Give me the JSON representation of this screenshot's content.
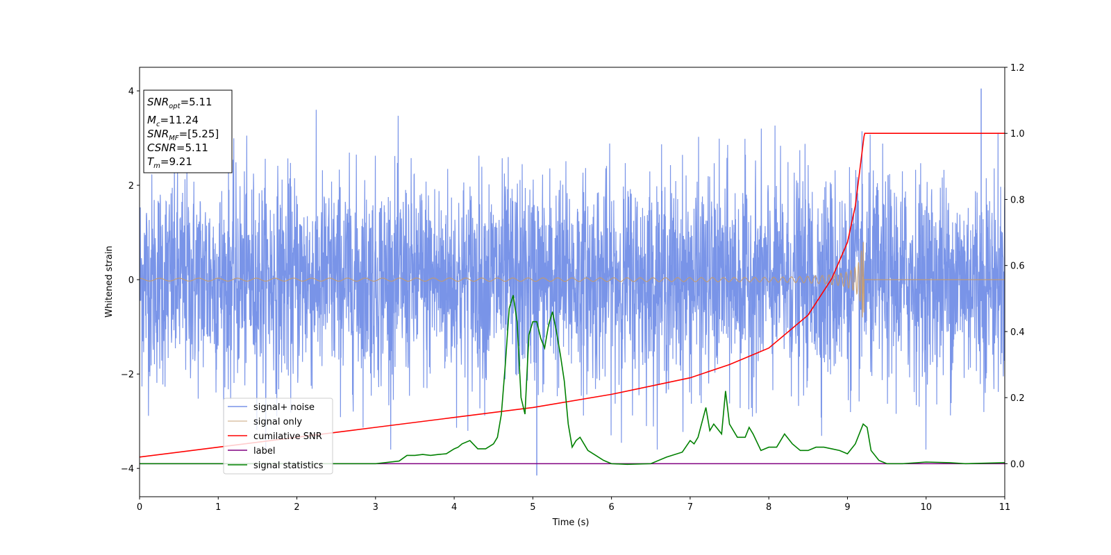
{
  "chart_data": {
    "type": "line",
    "xlabel": "Time (s)",
    "ylabel_left": "Whitened strain",
    "ylabel_right": "",
    "xlim": [
      0,
      11
    ],
    "ylim_left": [
      -4.6,
      4.5
    ],
    "ylim_right": [
      -0.1,
      1.2
    ],
    "x_ticks": [
      "0",
      "1",
      "2",
      "3",
      "4",
      "5",
      "6",
      "7",
      "8",
      "9",
      "10",
      "11"
    ],
    "y_ticks_left": [
      "−4",
      "−2",
      "0",
      "2",
      "4"
    ],
    "y_ticks_right": [
      "0.0",
      "0.2",
      "0.4",
      "0.6",
      "0.8",
      "1.0",
      "1.2"
    ],
    "grid": false,
    "legend_position": "lower-left",
    "info_box": {
      "snr_opt": {
        "label": "SNR",
        "sub": "opt",
        "value": "=5.11"
      },
      "mc": {
        "label": "M",
        "sub": "c",
        "value": "=11.24"
      },
      "snr_mf": {
        "label": "SNR",
        "sub": "MF",
        "value": "=[5.25]"
      },
      "csnr": {
        "label": "CSNR",
        "value": "=5.11"
      },
      "tm": {
        "label": "T",
        "sub": "m",
        "value": "=9.21"
      }
    },
    "series": [
      {
        "name": "signal+ noise",
        "axis": "left",
        "color": "#7994e8",
        "description_values": {
          "std": 1.1,
          "min": -4.15,
          "max": 4.05,
          "t_min": 5.05,
          "t_max": 10.7
        }
      },
      {
        "name": "signal only",
        "axis": "left",
        "color": "#c49a6c",
        "chirp": {
          "t_merger": 9.21,
          "amp_start": 0.03,
          "amp_peak": 0.8,
          "end": 11
        }
      },
      {
        "name": "cumilative SNR",
        "axis": "right",
        "color": "#ff0000",
        "x": [
          0,
          1,
          2,
          3,
          4,
          5,
          6,
          7,
          7.5,
          8,
          8.5,
          8.8,
          9.0,
          9.1,
          9.21,
          9.22,
          11
        ],
        "y": [
          0.02,
          0.05,
          0.08,
          0.11,
          0.14,
          0.17,
          0.21,
          0.26,
          0.3,
          0.35,
          0.45,
          0.56,
          0.67,
          0.78,
          0.99,
          1.0,
          1.0
        ]
      },
      {
        "name": "label",
        "axis": "right",
        "color": "#800080",
        "x": [
          0,
          11
        ],
        "y": [
          0.0,
          0.0
        ]
      },
      {
        "name": "signal statistics",
        "axis": "right",
        "color": "#008000",
        "x": [
          0,
          0.5,
          1,
          1.5,
          2,
          2.5,
          3,
          3.3,
          3.4,
          3.5,
          3.6,
          3.7,
          3.8,
          3.9,
          4.0,
          4.05,
          4.1,
          4.2,
          4.3,
          4.4,
          4.5,
          4.55,
          4.6,
          4.65,
          4.7,
          4.75,
          4.8,
          4.85,
          4.9,
          4.95,
          5.0,
          5.05,
          5.1,
          5.15,
          5.2,
          5.25,
          5.3,
          5.35,
          5.4,
          5.45,
          5.5,
          5.55,
          5.6,
          5.65,
          5.7,
          5.8,
          5.9,
          6.0,
          6.2,
          6.5,
          6.7,
          6.9,
          7.0,
          7.05,
          7.1,
          7.2,
          7.25,
          7.3,
          7.4,
          7.45,
          7.5,
          7.6,
          7.7,
          7.75,
          7.8,
          7.9,
          8.0,
          8.1,
          8.2,
          8.3,
          8.4,
          8.5,
          8.6,
          8.7,
          8.8,
          8.9,
          9.0,
          9.1,
          9.2,
          9.25,
          9.3,
          9.4,
          9.5,
          9.7,
          10.0,
          10.3,
          10.5,
          11
        ],
        "y": [
          0.0,
          0.0,
          0.0,
          0.0,
          0.0,
          0.0,
          0.0,
          0.008,
          0.025,
          0.025,
          0.028,
          0.025,
          0.028,
          0.03,
          0.045,
          0.05,
          0.06,
          0.07,
          0.045,
          0.045,
          0.06,
          0.08,
          0.15,
          0.3,
          0.47,
          0.51,
          0.43,
          0.2,
          0.15,
          0.39,
          0.43,
          0.43,
          0.38,
          0.35,
          0.42,
          0.46,
          0.4,
          0.33,
          0.25,
          0.12,
          0.05,
          0.07,
          0.08,
          0.06,
          0.04,
          0.025,
          0.01,
          0.0,
          -0.002,
          0.0,
          0.02,
          0.035,
          0.07,
          0.06,
          0.08,
          0.17,
          0.1,
          0.12,
          0.09,
          0.22,
          0.12,
          0.08,
          0.08,
          0.11,
          0.09,
          0.04,
          0.05,
          0.05,
          0.09,
          0.06,
          0.04,
          0.04,
          0.05,
          0.05,
          0.045,
          0.04,
          0.03,
          0.06,
          0.12,
          0.11,
          0.04,
          0.01,
          0.0,
          0.0,
          0.005,
          0.003,
          0.0,
          0.003
        ]
      }
    ]
  }
}
